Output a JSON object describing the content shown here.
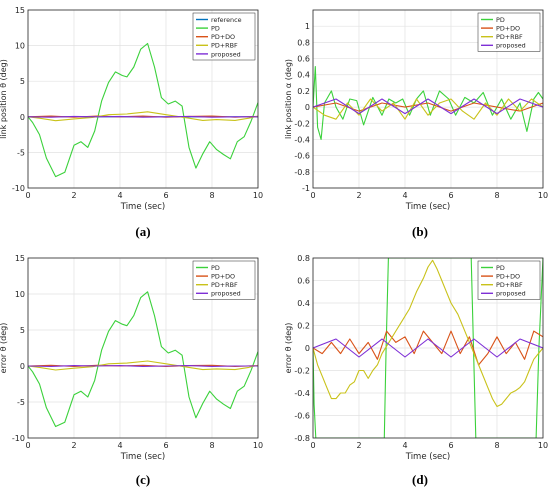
{
  "figure": {
    "captions": [
      "(a)",
      "(b)",
      "(c)",
      "(d)"
    ]
  },
  "colors": {
    "reference": "#0072BD",
    "PD": "#3bd13b",
    "PD+DO": "#D95319",
    "PD+RBF": "#c9c21a",
    "proposed": "#7E2FD6"
  },
  "chart_data": [
    {
      "id": "a",
      "type": "line",
      "title": "",
      "xlabel": "Time (sec)",
      "ylabel": "link position θ (deg)",
      "xlim": [
        0,
        10
      ],
      "ylim": [
        -10,
        15
      ],
      "xticks": [
        "0",
        "2",
        "4",
        "6",
        "8",
        "10"
      ],
      "yticks": [
        "-10",
        "-5",
        "0",
        "5",
        "10",
        "15"
      ],
      "grid": true,
      "legend": "top-right",
      "series": [
        {
          "name": "reference",
          "color": "#0072BD",
          "x": [
            0,
            10
          ],
          "y": [
            0,
            0
          ]
        },
        {
          "name": "PD",
          "color": "#3bd13b",
          "x": [
            0,
            0.2,
            0.5,
            0.8,
            1.2,
            1.6,
            2.0,
            2.3,
            2.6,
            2.9,
            3.2,
            3.5,
            3.8,
            4.1,
            4.3,
            4.6,
            4.9,
            5.2,
            5.5,
            5.8,
            6.1,
            6.4,
            6.7,
            7.0,
            7.3,
            7.6,
            7.9,
            8.2,
            8.5,
            8.8,
            9.1,
            9.4,
            9.7,
            10
          ],
          "y": [
            0,
            -0.8,
            -2.5,
            -5.8,
            -8.4,
            -7.8,
            -4.0,
            -3.5,
            -4.3,
            -2.0,
            2.2,
            4.8,
            6.3,
            5.8,
            5.6,
            7.0,
            9.5,
            10.3,
            7.0,
            2.7,
            1.8,
            2.2,
            1.5,
            -4.3,
            -7.2,
            -5.2,
            -3.5,
            -4.6,
            -5.3,
            -5.9,
            -3.5,
            -2.8,
            -0.6,
            2.0
          ]
        },
        {
          "name": "PD+DO",
          "color": "#D95319",
          "x": [
            0,
            1,
            2,
            3,
            4,
            5,
            6,
            7,
            8,
            9,
            10
          ],
          "y": [
            0,
            0.1,
            -0.05,
            0.1,
            0,
            0.1,
            -0.05,
            0.05,
            0.1,
            -0.05,
            0.05
          ]
        },
        {
          "name": "PD+RBF",
          "color": "#c9c21a",
          "x": [
            0,
            0.5,
            1.2,
            2.0,
            2.8,
            3.5,
            4.3,
            5.2,
            6.0,
            7.0,
            7.6,
            8.2,
            9.0,
            9.6,
            10
          ],
          "y": [
            0,
            -0.2,
            -0.55,
            -0.3,
            -0.1,
            0.3,
            0.4,
            0.7,
            0.3,
            -0.2,
            -0.5,
            -0.4,
            -0.5,
            -0.2,
            0.1
          ]
        },
        {
          "name": "proposed",
          "color": "#7E2FD6",
          "x": [
            0,
            1,
            2,
            3,
            4,
            5,
            6,
            7,
            8,
            9,
            10
          ],
          "y": [
            0,
            -0.05,
            0.05,
            0,
            0.05,
            -0.05,
            0,
            0.05,
            -0.05,
            0,
            0
          ]
        }
      ]
    },
    {
      "id": "b",
      "type": "line",
      "title": "",
      "xlabel": "Time (sec)",
      "ylabel": "link position α (deg)",
      "xlim": [
        0,
        10
      ],
      "ylim": [
        -1,
        1.2
      ],
      "xticks": [
        "0",
        "2",
        "4",
        "6",
        "8",
        "10"
      ],
      "yticks": [
        "-1",
        "-0.8",
        "-0.6",
        "-0.4",
        "-0.2",
        "0",
        "0.2",
        "0.4",
        "0.6",
        "0.8",
        "1"
      ],
      "grid": true,
      "legend": "top-right",
      "series": [
        {
          "name": "PD",
          "color": "#3bd13b",
          "x": [
            0,
            0.1,
            0.2,
            0.35,
            0.5,
            0.8,
            1.0,
            1.3,
            1.6,
            1.9,
            2.2,
            2.6,
            3.0,
            3.3,
            3.6,
            3.9,
            4.2,
            4.5,
            4.8,
            5.1,
            5.5,
            5.9,
            6.2,
            6.6,
            7.0,
            7.4,
            7.8,
            8.2,
            8.6,
            9.0,
            9.3,
            9.6,
            9.8,
            10
          ],
          "y": [
            0,
            0.5,
            -0.25,
            -0.4,
            0.05,
            0.2,
            0,
            -0.15,
            0.1,
            0.08,
            -0.22,
            0.12,
            -0.1,
            0.1,
            0.05,
            0.1,
            -0.1,
            0.1,
            0.2,
            -0.1,
            0.2,
            0.1,
            -0.1,
            0.12,
            0.05,
            0.18,
            -0.1,
            0.1,
            -0.15,
            0.05,
            -0.3,
            0.1,
            0.18,
            0.1
          ]
        },
        {
          "name": "PD+DO",
          "color": "#D95319",
          "x": [
            0,
            1,
            2,
            3,
            4,
            5,
            6,
            7,
            8,
            9,
            10
          ],
          "y": [
            0,
            0.05,
            -0.05,
            0.05,
            0,
            0.05,
            -0.05,
            0.05,
            0,
            -0.05,
            0.05
          ]
        },
        {
          "name": "PD+RBF",
          "color": "#c9c21a",
          "x": [
            0,
            0.5,
            1.0,
            1.5,
            2.0,
            2.5,
            3.0,
            3.5,
            4.0,
            4.5,
            5.0,
            5.5,
            6.0,
            6.5,
            7.0,
            7.5,
            8.0,
            8.5,
            9.0,
            9.5,
            10
          ],
          "y": [
            0,
            -0.1,
            -0.15,
            0.05,
            -0.1,
            0.1,
            -0.05,
            0.05,
            -0.15,
            0.1,
            -0.1,
            0.05,
            0.1,
            -0.05,
            -0.15,
            0.05,
            -0.1,
            0.1,
            -0.05,
            0.1,
            0
          ]
        },
        {
          "name": "proposed",
          "color": "#7E2FD6",
          "x": [
            0,
            1,
            2,
            3,
            4,
            5,
            6,
            7,
            8,
            9,
            10
          ],
          "y": [
            0,
            0.1,
            -0.08,
            0.1,
            -0.08,
            0.1,
            -0.08,
            0.1,
            -0.08,
            0.1,
            0
          ]
        }
      ]
    },
    {
      "id": "c",
      "type": "line",
      "title": "",
      "xlabel": "Time (sec)",
      "ylabel": "error θ (deg)",
      "xlim": [
        0,
        10
      ],
      "ylim": [
        -10,
        15
      ],
      "xticks": [
        "0",
        "2",
        "4",
        "6",
        "8",
        "10"
      ],
      "yticks": [
        "-10",
        "-5",
        "0",
        "5",
        "10",
        "15"
      ],
      "grid": true,
      "legend": "top-right",
      "series": [
        {
          "name": "PD",
          "color": "#3bd13b",
          "x": [
            0,
            0.2,
            0.5,
            0.8,
            1.2,
            1.6,
            2.0,
            2.3,
            2.6,
            2.9,
            3.2,
            3.5,
            3.8,
            4.1,
            4.3,
            4.6,
            4.9,
            5.2,
            5.5,
            5.8,
            6.1,
            6.4,
            6.7,
            7.0,
            7.3,
            7.6,
            7.9,
            8.2,
            8.5,
            8.8,
            9.1,
            9.4,
            9.7,
            10
          ],
          "y": [
            0,
            -0.8,
            -2.5,
            -5.8,
            -8.4,
            -7.8,
            -4.0,
            -3.5,
            -4.3,
            -2.0,
            2.2,
            4.8,
            6.3,
            5.8,
            5.6,
            7.0,
            9.5,
            10.3,
            7.0,
            2.7,
            1.8,
            2.2,
            1.5,
            -4.3,
            -7.2,
            -5.2,
            -3.5,
            -4.6,
            -5.3,
            -5.9,
            -3.5,
            -2.8,
            -0.6,
            2.0
          ]
        },
        {
          "name": "PD+DO",
          "color": "#D95319",
          "x": [
            0,
            1,
            2,
            3,
            4,
            5,
            6,
            7,
            8,
            9,
            10
          ],
          "y": [
            0,
            0.1,
            -0.05,
            0.1,
            0,
            0.1,
            -0.05,
            0.05,
            0.1,
            -0.05,
            0.05
          ]
        },
        {
          "name": "PD+RBF",
          "color": "#c9c21a",
          "x": [
            0,
            0.5,
            1.2,
            2.0,
            2.8,
            3.5,
            4.3,
            5.2,
            6.0,
            7.0,
            7.6,
            8.2,
            9.0,
            9.6,
            10
          ],
          "y": [
            0,
            -0.2,
            -0.55,
            -0.3,
            -0.1,
            0.3,
            0.4,
            0.7,
            0.3,
            -0.2,
            -0.5,
            -0.4,
            -0.5,
            -0.2,
            0.1
          ]
        },
        {
          "name": "proposed",
          "color": "#7E2FD6",
          "x": [
            0,
            1,
            2,
            3,
            4,
            5,
            6,
            7,
            8,
            9,
            10
          ],
          "y": [
            0,
            -0.05,
            0.05,
            0,
            0.05,
            -0.05,
            0,
            0.05,
            -0.05,
            0,
            0
          ]
        }
      ]
    },
    {
      "id": "d",
      "type": "line",
      "title": "",
      "xlabel": "Time (sec)",
      "ylabel": "error θ (deg)",
      "xlim": [
        0,
        10
      ],
      "ylim": [
        -0.8,
        0.8
      ],
      "xticks": [
        "0",
        "2",
        "4",
        "6",
        "8",
        "10"
      ],
      "yticks": [
        "-0.8",
        "-0.6",
        "-0.4",
        "-0.2",
        "0",
        "0.2",
        "0.4",
        "0.6",
        "0.8"
      ],
      "grid": true,
      "legend": "top-right",
      "series": [
        {
          "name": "PD",
          "color": "#3bd13b",
          "x": [
            0,
            0.05,
            0.12,
            3.1,
            3.18,
            3.28,
            6.88,
            6.98,
            7.08,
            9.7,
            9.82,
            10
          ],
          "y": [
            0,
            -0.5,
            -0.8,
            -0.8,
            0,
            0.8,
            0.8,
            0,
            -0.8,
            -0.8,
            0,
            0.8
          ]
        },
        {
          "name": "PD+DO",
          "color": "#D95319",
          "x": [
            0,
            0.4,
            0.8,
            1.2,
            1.6,
            2.0,
            2.4,
            2.8,
            3.2,
            3.6,
            4.0,
            4.4,
            4.8,
            5.2,
            5.6,
            6.0,
            6.4,
            6.8,
            7.2,
            7.6,
            8.0,
            8.4,
            8.8,
            9.2,
            9.6,
            10
          ],
          "y": [
            0,
            -0.05,
            0.05,
            -0.05,
            0.08,
            -0.05,
            0.05,
            -0.1,
            0.15,
            0.05,
            0.1,
            -0.05,
            0.15,
            0.05,
            -0.05,
            0.15,
            -0.05,
            0.1,
            -0.15,
            -0.05,
            0.1,
            -0.05,
            0.05,
            -0.1,
            0.15,
            0.1
          ]
        },
        {
          "name": "PD+RBF",
          "color": "#c9c21a",
          "x": [
            0,
            0.2,
            0.4,
            0.6,
            0.8,
            1.0,
            1.2,
            1.4,
            1.6,
            1.8,
            2.0,
            2.2,
            2.4,
            2.6,
            2.8,
            3.0,
            3.3,
            3.6,
            3.9,
            4.2,
            4.5,
            4.8,
            5.0,
            5.2,
            5.4,
            5.6,
            5.8,
            6.0,
            6.3,
            6.6,
            7.0,
            7.3,
            7.6,
            7.8,
            8.0,
            8.2,
            8.4,
            8.6,
            8.8,
            9.0,
            9.2,
            9.4,
            9.6,
            9.8,
            10
          ],
          "y": [
            0,
            -0.15,
            -0.25,
            -0.35,
            -0.45,
            -0.45,
            -0.4,
            -0.4,
            -0.33,
            -0.3,
            -0.2,
            -0.2,
            -0.27,
            -0.2,
            -0.15,
            -0.05,
            0.05,
            0.15,
            0.25,
            0.35,
            0.5,
            0.62,
            0.72,
            0.78,
            0.7,
            0.6,
            0.5,
            0.4,
            0.3,
            0.15,
            -0.05,
            -0.2,
            -0.35,
            -0.45,
            -0.52,
            -0.5,
            -0.45,
            -0.4,
            -0.38,
            -0.35,
            -0.3,
            -0.2,
            -0.1,
            -0.05,
            0
          ]
        },
        {
          "name": "proposed",
          "color": "#7E2FD6",
          "x": [
            0,
            1,
            2,
            3,
            4,
            5,
            6,
            7,
            8,
            9,
            10
          ],
          "y": [
            0,
            0.08,
            -0.08,
            0.08,
            -0.08,
            0.08,
            -0.08,
            0.08,
            -0.08,
            0.08,
            0
          ]
        }
      ]
    }
  ]
}
